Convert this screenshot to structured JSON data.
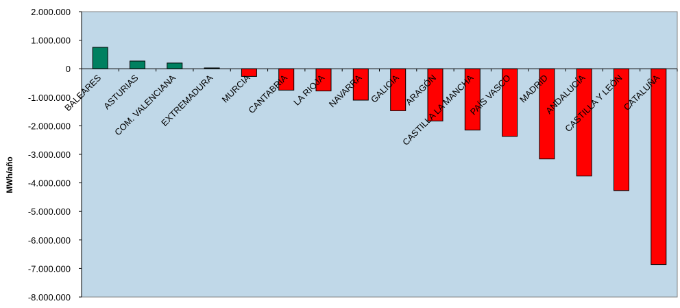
{
  "chart_data": {
    "type": "bar",
    "ylabel": "MWh/año",
    "xlabel": "",
    "ylim": [
      -8000000,
      2000000
    ],
    "ytick_step": 1000000,
    "ytick_labels": [
      "2.000.000",
      "1.000.000",
      "0",
      "-1.000.000",
      "-2.000.000",
      "-3.000.000",
      "-4.000.000",
      "-5.000.000",
      "-6.000.000",
      "-7.000.000",
      "-8.000.000"
    ],
    "grid": false,
    "legend": "none",
    "categories": [
      "BALEARES",
      "ASTURIAS",
      "COM. VALENCIANA",
      "EXTREMADURA",
      "MURCIA",
      "CANTABRIA",
      "LA RIOJA",
      "NAVARRA",
      "GALICIA",
      "ARAGÓN",
      "CASTILLA LA MANCHA",
      "PAÍS VASCO",
      "MADRID",
      "ANDALUCÍA",
      "CASTILLA Y LEÓN",
      "CATALUÑA"
    ],
    "values": [
      750000,
      270000,
      200000,
      30000,
      -270000,
      -750000,
      -780000,
      -1100000,
      -1470000,
      -1830000,
      -2150000,
      -2370000,
      -3160000,
      -3760000,
      -4270000,
      -6860000
    ],
    "colors": {
      "positive": "#008060",
      "negative": "#ff0000",
      "plot_background": "#c0d8e8",
      "bar_outline": "#000000"
    }
  }
}
